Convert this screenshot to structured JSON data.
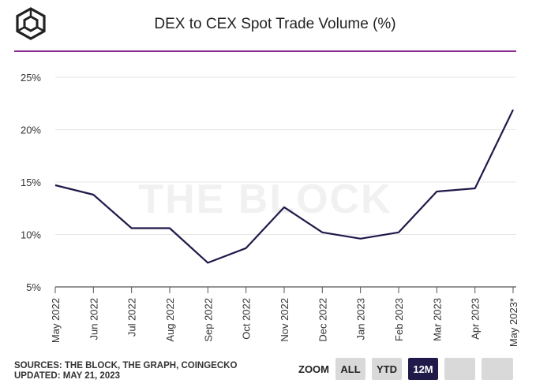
{
  "header": {
    "title": "DEX to CEX Spot Trade Volume (%)"
  },
  "footer": {
    "sources": "SOURCES: THE BLOCK, THE GRAPH, COINGECKO",
    "updated": "UPDATED: MAY 21, 2023"
  },
  "zoom": {
    "label": "ZOOM",
    "buttons": [
      "ALL",
      "YTD",
      "12M",
      "",
      ""
    ],
    "active": "12M"
  },
  "colors": {
    "accent_line": "#8b2a8e",
    "series": "#1f1a4a",
    "button_active": "#1f1a4a",
    "button": "#d9d9d9"
  },
  "chart_data": {
    "type": "line",
    "title": "DEX to CEX Spot Trade Volume (%)",
    "watermark": "THE BLOCK",
    "categories": [
      "May 2022",
      "Jun 2022",
      "Jul 2022",
      "Aug 2022",
      "Sep 2022",
      "Oct 2022",
      "Nov 2022",
      "Dec 2022",
      "Jan 2023",
      "Feb 2023",
      "Mar 2023",
      "Apr 2023",
      "May 2023*"
    ],
    "series": [
      {
        "values": [
          14.7,
          13.8,
          10.6,
          10.6,
          7.3,
          8.7,
          12.6,
          10.2,
          9.6,
          10.2,
          14.1,
          14.4,
          21.9
        ]
      }
    ],
    "yticks": [
      "5%",
      "10%",
      "15%",
      "20%",
      "25%"
    ],
    "ytick_values": [
      5,
      10,
      15,
      20,
      25
    ],
    "ylim": [
      5,
      25.5
    ],
    "grid": true,
    "legend": "none"
  }
}
